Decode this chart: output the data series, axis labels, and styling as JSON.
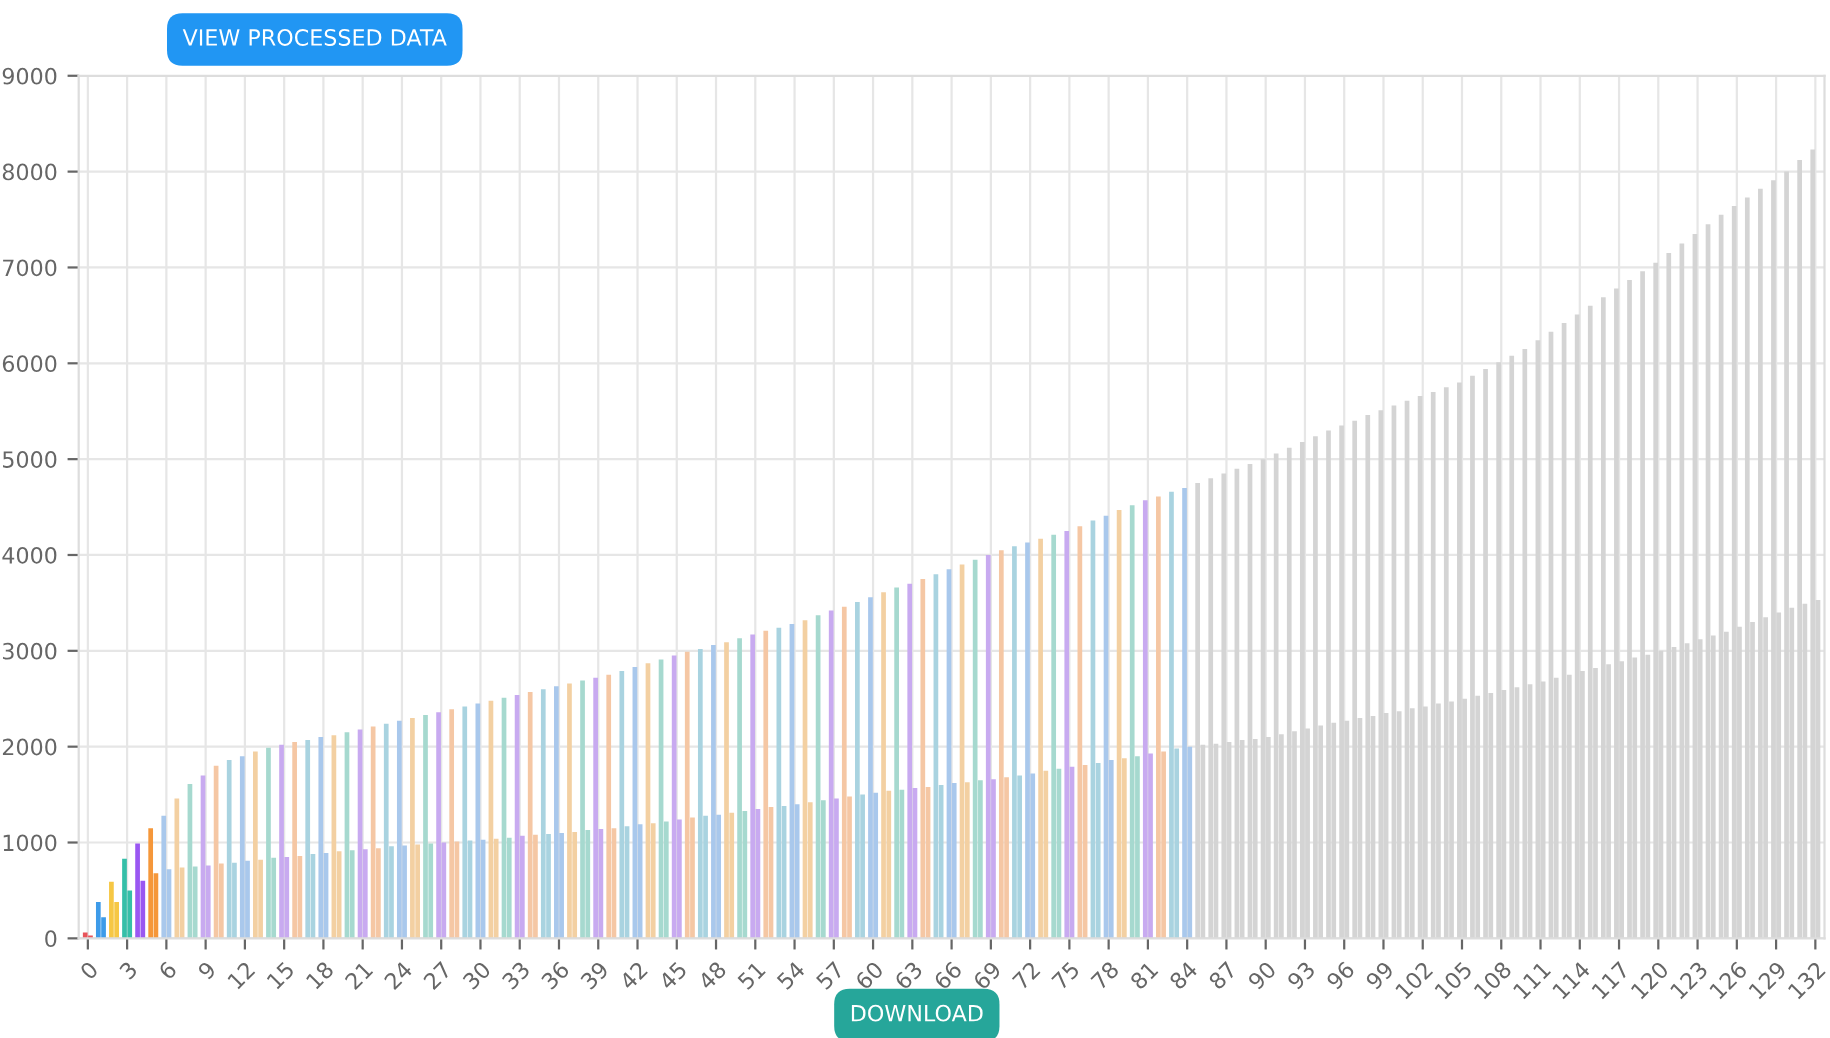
{
  "chart_data": {
    "type": "bar",
    "ylim": [
      0,
      9000
    ],
    "yticks": [
      0,
      1000,
      2000,
      3000,
      4000,
      5000,
      6000,
      7000,
      8000,
      9000
    ],
    "grid": true,
    "annotations": [
      "VIEW PROCESSED DATA",
      "DOWNLOAD"
    ],
    "categories": [
      "0",
      null,
      null,
      "3",
      null,
      null,
      "6",
      null,
      null,
      "9",
      null,
      null,
      "12",
      null,
      null,
      "15",
      null,
      null,
      "18",
      null,
      null,
      "21",
      null,
      null,
      "24",
      null,
      null,
      "27",
      null,
      null,
      "30",
      null,
      null,
      "33",
      null,
      null,
      "36",
      null,
      null,
      "39",
      null,
      null,
      "42",
      null,
      null,
      "45",
      null,
      null,
      "48",
      null,
      null,
      "51",
      null,
      null,
      "54",
      null,
      null,
      "57",
      null,
      null,
      "60",
      null,
      null,
      "63",
      null,
      null,
      "66",
      null,
      null,
      "69",
      null,
      null,
      "72",
      null,
      null,
      "75",
      null,
      null,
      "78",
      null,
      null,
      "81",
      null,
      null,
      "84",
      null,
      null,
      "87",
      null,
      null,
      "90",
      null,
      null,
      "93",
      null,
      null,
      "96",
      null,
      null,
      "99",
      null,
      null,
      "102",
      null,
      null,
      "105",
      null,
      null,
      "108",
      null,
      null,
      "111",
      null,
      null,
      "114",
      null,
      null,
      "117",
      null,
      null,
      "120",
      null,
      null,
      "123",
      null,
      null,
      "126",
      null,
      null,
      "129",
      null,
      null,
      "132"
    ],
    "series": [
      {
        "values": [
          60,
          380,
          590,
          830,
          990,
          1150,
          1280,
          1460,
          1610,
          1700,
          1800,
          1860,
          1900,
          1950,
          1990,
          2020,
          2050,
          2070,
          2100,
          2120,
          2150,
          2180,
          2210,
          2240,
          2270,
          2300,
          2330,
          2360,
          2390,
          2420,
          2450,
          2480,
          2510,
          2540,
          2570,
          2600,
          2630,
          2660,
          2690,
          2720,
          2750,
          2790,
          2830,
          2870,
          2910,
          2950,
          2990,
          3020,
          3060,
          3090,
          3130,
          3170,
          3210,
          3240,
          3280,
          3320,
          3370,
          3420,
          3460,
          3510,
          3560,
          3610,
          3660,
          3700,
          3750,
          3800,
          3850,
          3900,
          3950,
          4000,
          4050,
          4090,
          4130,
          4170,
          4210,
          4250,
          4300,
          4360,
          4410,
          4470,
          4520,
          4570,
          4610,
          4660,
          4700,
          4750,
          4800,
          4850,
          4900,
          4950,
          5000,
          5060,
          5120,
          5180,
          5240,
          5300,
          5350,
          5400,
          5460,
          5510,
          5560,
          5610,
          5660,
          5700,
          5750,
          5800,
          5870,
          5940,
          6010,
          6080,
          6150,
          6240,
          6330,
          6420,
          6510,
          6600,
          6690,
          6780,
          6870,
          6960,
          7050,
          7150,
          7250,
          7350,
          7450,
          7550,
          7640,
          7730,
          7820,
          7910,
          8000,
          8120,
          8230
        ],
        "colors": [
          "#e8545a",
          "#3d9be9",
          "#f6c744",
          "#35bfa8",
          "#9a57f2",
          "#f5973a",
          "#a9c8ec",
          "#f3d0a2",
          "#a6d9cf",
          "#c8aaf0",
          "#f5c7a4",
          "#a9d3e0",
          "#a9c8ec",
          "#f3d0a2",
          "#a6d9cf",
          "#c8aaf0",
          "#f5c7a4",
          "#a9d3e0",
          "#a9c8ec",
          "#f3d0a2",
          "#a6d9cf",
          "#c8aaf0",
          "#f5c7a4",
          "#a9d3e0",
          "#a9c8ec",
          "#f3d0a2",
          "#a6d9cf",
          "#c8aaf0",
          "#f5c7a4",
          "#a9d3e0",
          "#a9c8ec",
          "#f3d0a2",
          "#a6d9cf",
          "#c8aaf0",
          "#f5c7a4",
          "#a9d3e0",
          "#a9c8ec",
          "#f3d0a2",
          "#a6d9cf",
          "#c8aaf0",
          "#f5c7a4",
          "#a9d3e0",
          "#a9c8ec",
          "#f3d0a2",
          "#a6d9cf",
          "#c8aaf0",
          "#f5c7a4",
          "#a9d3e0",
          "#a9c8ec",
          "#f3d0a2",
          "#a6d9cf",
          "#c8aaf0",
          "#f5c7a4",
          "#a9d3e0",
          "#a9c8ec",
          "#f3d0a2",
          "#a6d9cf",
          "#c8aaf0",
          "#f5c7a4",
          "#a9d3e0",
          "#a9c8ec",
          "#f3d0a2",
          "#a6d9cf",
          "#c8aaf0",
          "#f5c7a4",
          "#a9d3e0",
          "#a9c8ec",
          "#f3d0a2",
          "#a6d9cf",
          "#c8aaf0",
          "#f5c7a4",
          "#a9d3e0",
          "#a9c8ec",
          "#f3d0a2",
          "#a6d9cf",
          "#c8aaf0",
          "#f5c7a4",
          "#a9d3e0",
          "#a9c8ec",
          "#f3d0a2",
          "#a6d9cf",
          "#c8aaf0",
          "#f5c7a4",
          "#a9d3e0",
          "#a9c8ec",
          "#d4d4d4",
          "#d4d4d4",
          "#d4d4d4",
          "#d4d4d4",
          "#d4d4d4",
          "#d4d4d4",
          "#d4d4d4",
          "#d4d4d4",
          "#d4d4d4",
          "#d4d4d4",
          "#d4d4d4",
          "#d4d4d4",
          "#d4d4d4",
          "#d4d4d4",
          "#d4d4d4",
          "#d4d4d4",
          "#d4d4d4",
          "#d4d4d4",
          "#d4d4d4",
          "#d4d4d4",
          "#d4d4d4",
          "#d4d4d4",
          "#d4d4d4",
          "#d4d4d4",
          "#d4d4d4",
          "#d4d4d4",
          "#d4d4d4",
          "#d4d4d4",
          "#d4d4d4",
          "#d4d4d4",
          "#d4d4d4",
          "#d4d4d4",
          "#d4d4d4",
          "#d4d4d4",
          "#d4d4d4",
          "#d4d4d4",
          "#d4d4d4",
          "#d4d4d4",
          "#d4d4d4",
          "#d4d4d4",
          "#d4d4d4",
          "#d4d4d4",
          "#d4d4d4",
          "#d4d4d4",
          "#d4d4d4",
          "#d4d4d4",
          "#d4d4d4",
          "#d4d4d4"
        ]
      },
      {
        "values": [
          30,
          220,
          380,
          500,
          600,
          680,
          720,
          740,
          750,
          760,
          780,
          790,
          810,
          820,
          840,
          850,
          860,
          880,
          890,
          910,
          920,
          930,
          940,
          960,
          970,
          980,
          990,
          1000,
          1010,
          1020,
          1030,
          1040,
          1050,
          1070,
          1080,
          1090,
          1100,
          1110,
          1130,
          1140,
          1150,
          1170,
          1190,
          1200,
          1220,
          1240,
          1260,
          1280,
          1290,
          1310,
          1330,
          1350,
          1370,
          1380,
          1400,
          1420,
          1440,
          1460,
          1480,
          1500,
          1520,
          1540,
          1550,
          1570,
          1580,
          1600,
          1620,
          1630,
          1650,
          1660,
          1680,
          1700,
          1720,
          1750,
          1770,
          1790,
          1810,
          1830,
          1860,
          1880,
          1900,
          1930,
          1950,
          1980,
          2000,
          2020,
          2030,
          2050,
          2070,
          2080,
          2100,
          2130,
          2160,
          2190,
          2220,
          2250,
          2270,
          2300,
          2320,
          2350,
          2370,
          2400,
          2420,
          2450,
          2470,
          2500,
          2530,
          2560,
          2590,
          2620,
          2650,
          2680,
          2720,
          2750,
          2790,
          2820,
          2860,
          2890,
          2930,
          2960,
          3000,
          3040,
          3080,
          3120,
          3160,
          3200,
          3250,
          3300,
          3350,
          3400,
          3450,
          3490,
          3530
        ],
        "colors": [
          "#e8545a",
          "#3d9be9",
          "#f6c744",
          "#35bfa8",
          "#9a57f2",
          "#f5973a",
          "#a9c8ec",
          "#f3d0a2",
          "#a6d9cf",
          "#c8aaf0",
          "#f5c7a4",
          "#a9d3e0",
          "#a9c8ec",
          "#f3d0a2",
          "#a6d9cf",
          "#c8aaf0",
          "#f5c7a4",
          "#a9d3e0",
          "#a9c8ec",
          "#f3d0a2",
          "#a6d9cf",
          "#c8aaf0",
          "#f5c7a4",
          "#a9d3e0",
          "#a9c8ec",
          "#f3d0a2",
          "#a6d9cf",
          "#c8aaf0",
          "#f5c7a4",
          "#a9d3e0",
          "#a9c8ec",
          "#f3d0a2",
          "#a6d9cf",
          "#c8aaf0",
          "#f5c7a4",
          "#a9d3e0",
          "#a9c8ec",
          "#f3d0a2",
          "#a6d9cf",
          "#c8aaf0",
          "#f5c7a4",
          "#a9d3e0",
          "#a9c8ec",
          "#f3d0a2",
          "#a6d9cf",
          "#c8aaf0",
          "#f5c7a4",
          "#a9d3e0",
          "#a9c8ec",
          "#f3d0a2",
          "#a6d9cf",
          "#c8aaf0",
          "#f5c7a4",
          "#a9d3e0",
          "#a9c8ec",
          "#f3d0a2",
          "#a6d9cf",
          "#c8aaf0",
          "#f5c7a4",
          "#a9d3e0",
          "#a9c8ec",
          "#f3d0a2",
          "#a6d9cf",
          "#c8aaf0",
          "#f5c7a4",
          "#a9d3e0",
          "#a9c8ec",
          "#f3d0a2",
          "#a6d9cf",
          "#c8aaf0",
          "#f5c7a4",
          "#a9d3e0",
          "#a9c8ec",
          "#f3d0a2",
          "#a6d9cf",
          "#c8aaf0",
          "#f5c7a4",
          "#a9d3e0",
          "#a9c8ec",
          "#f3d0a2",
          "#a6d9cf",
          "#c8aaf0",
          "#f5c7a4",
          "#a9d3e0",
          "#a9c8ec",
          "#d4d4d4",
          "#d4d4d4",
          "#d4d4d4",
          "#d4d4d4",
          "#d4d4d4",
          "#d4d4d4",
          "#d4d4d4",
          "#d4d4d4",
          "#d4d4d4",
          "#d4d4d4",
          "#d4d4d4",
          "#d4d4d4",
          "#d4d4d4",
          "#d4d4d4",
          "#d4d4d4",
          "#d4d4d4",
          "#d4d4d4",
          "#d4d4d4",
          "#d4d4d4",
          "#d4d4d4",
          "#d4d4d4",
          "#d4d4d4",
          "#d4d4d4",
          "#d4d4d4",
          "#d4d4d4",
          "#d4d4d4",
          "#d4d4d4",
          "#d4d4d4",
          "#d4d4d4",
          "#d4d4d4",
          "#d4d4d4",
          "#d4d4d4",
          "#d4d4d4",
          "#d4d4d4",
          "#d4d4d4",
          "#d4d4d4",
          "#d4d4d4",
          "#d4d4d4",
          "#d4d4d4",
          "#d4d4d4",
          "#d4d4d4",
          "#d4d4d4",
          "#d4d4d4",
          "#d4d4d4",
          "#d4d4d4",
          "#d4d4d4",
          "#d4d4d4",
          "#d4d4d4"
        ]
      }
    ]
  }
}
